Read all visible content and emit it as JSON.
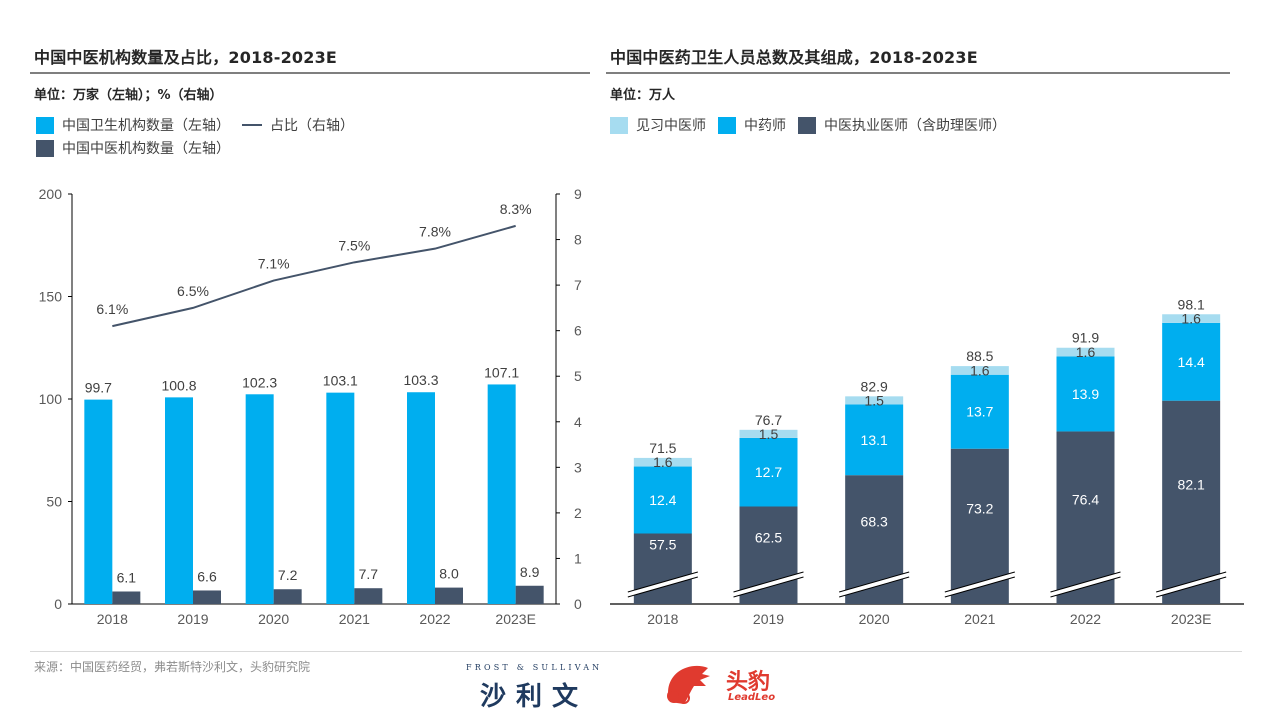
{
  "left_panel": {
    "title": "中国中医机构数量及占比，2018-2023E",
    "unit": "单位：万家（左轴）；%（右轴）",
    "legend": [
      {
        "label": "中国卫生机构数量（左轴）",
        "type": "bar",
        "color": "#00AEEF"
      },
      {
        "label": "占比（右轴）",
        "type": "line",
        "color": "#44546A"
      },
      {
        "label": "中国中医机构数量（左轴）",
        "type": "bar",
        "color": "#44546A"
      }
    ]
  },
  "right_panel": {
    "title": "中国中医药卫生人员总数及其组成，2018-2023E",
    "unit": "单位：万人",
    "legend": [
      {
        "label": "见习中医师",
        "color": "#A6DCF0"
      },
      {
        "label": "中药师",
        "color": "#00AEEF"
      },
      {
        "label": "中医执业医师（含助理医师）",
        "color": "#44546A"
      }
    ]
  },
  "chart_data": [
    {
      "type": "bar",
      "title": "中国中医机构数量及占比，2018-2023E",
      "categories": [
        "2018",
        "2019",
        "2020",
        "2021",
        "2022",
        "2023E"
      ],
      "series": [
        {
          "name": "中国卫生机构数量（左轴）",
          "type": "bar",
          "axis": "left",
          "color": "#00AEEF",
          "values": [
            99.7,
            100.8,
            102.3,
            103.1,
            103.3,
            107.1
          ],
          "labels": [
            "99.7",
            "100.8",
            "102.3",
            "103.1",
            "103.3",
            "107.1"
          ]
        },
        {
          "name": "中国中医机构数量（左轴）",
          "type": "bar",
          "axis": "left",
          "color": "#44546A",
          "values": [
            6.1,
            6.6,
            7.2,
            7.7,
            8.0,
            8.9
          ],
          "labels": [
            "6.1",
            "6.6",
            "7.2",
            "7.7",
            "8.0",
            "8.9"
          ]
        },
        {
          "name": "占比（右轴）",
          "type": "line",
          "axis": "right",
          "color": "#44546A",
          "values": [
            6.1,
            6.5,
            7.1,
            7.5,
            7.8,
            8.3
          ],
          "labels": [
            "6.1%",
            "6.5%",
            "7.1%",
            "7.5%",
            "7.8%",
            "8.3%"
          ]
        }
      ],
      "y_left": {
        "range": [
          0,
          200
        ],
        "ticks": [
          "0",
          "50",
          "100",
          "150",
          "200"
        ]
      },
      "y_right": {
        "range": [
          0,
          9
        ],
        "ticks": [
          "0",
          "1",
          "2",
          "3",
          "4",
          "5",
          "6",
          "7",
          "8",
          "9"
        ]
      },
      "xlabel": "",
      "ylabel": "",
      "grid": false,
      "legend_position": "top-left"
    },
    {
      "type": "bar",
      "stacked": true,
      "axis_break": true,
      "title": "中国中医药卫生人员总数及其组成，2018-2023E",
      "categories": [
        "2018",
        "2019",
        "2020",
        "2021",
        "2022",
        "2023E"
      ],
      "series": [
        {
          "name": "中医执业医师（含助理医师）",
          "color": "#44546A",
          "values": [
            57.5,
            62.5,
            68.3,
            73.2,
            76.4,
            82.1
          ]
        },
        {
          "name": "中药师",
          "color": "#00AEEF",
          "values": [
            12.4,
            12.7,
            13.1,
            13.7,
            13.9,
            14.4
          ]
        },
        {
          "name": "见习中医师",
          "color": "#A6DCF0",
          "values": [
            1.6,
            1.5,
            1.5,
            1.6,
            1.6,
            1.6
          ]
        }
      ],
      "totals": [
        "71.5",
        "76.7",
        "82.9",
        "88.5",
        "91.9",
        "98.1"
      ],
      "xlabel": "",
      "ylabel": "",
      "grid": false,
      "legend_position": "top-left"
    }
  ],
  "footer": {
    "source": "来源：中国医药经贸，弗若斯特沙利文，头豹研究院",
    "fs_logo_top": "FROST & SULLIVAN",
    "fs_logo_bottom": "沙利文",
    "leadleo_cn": "头豹",
    "leadleo_en": "LeadLeo"
  }
}
